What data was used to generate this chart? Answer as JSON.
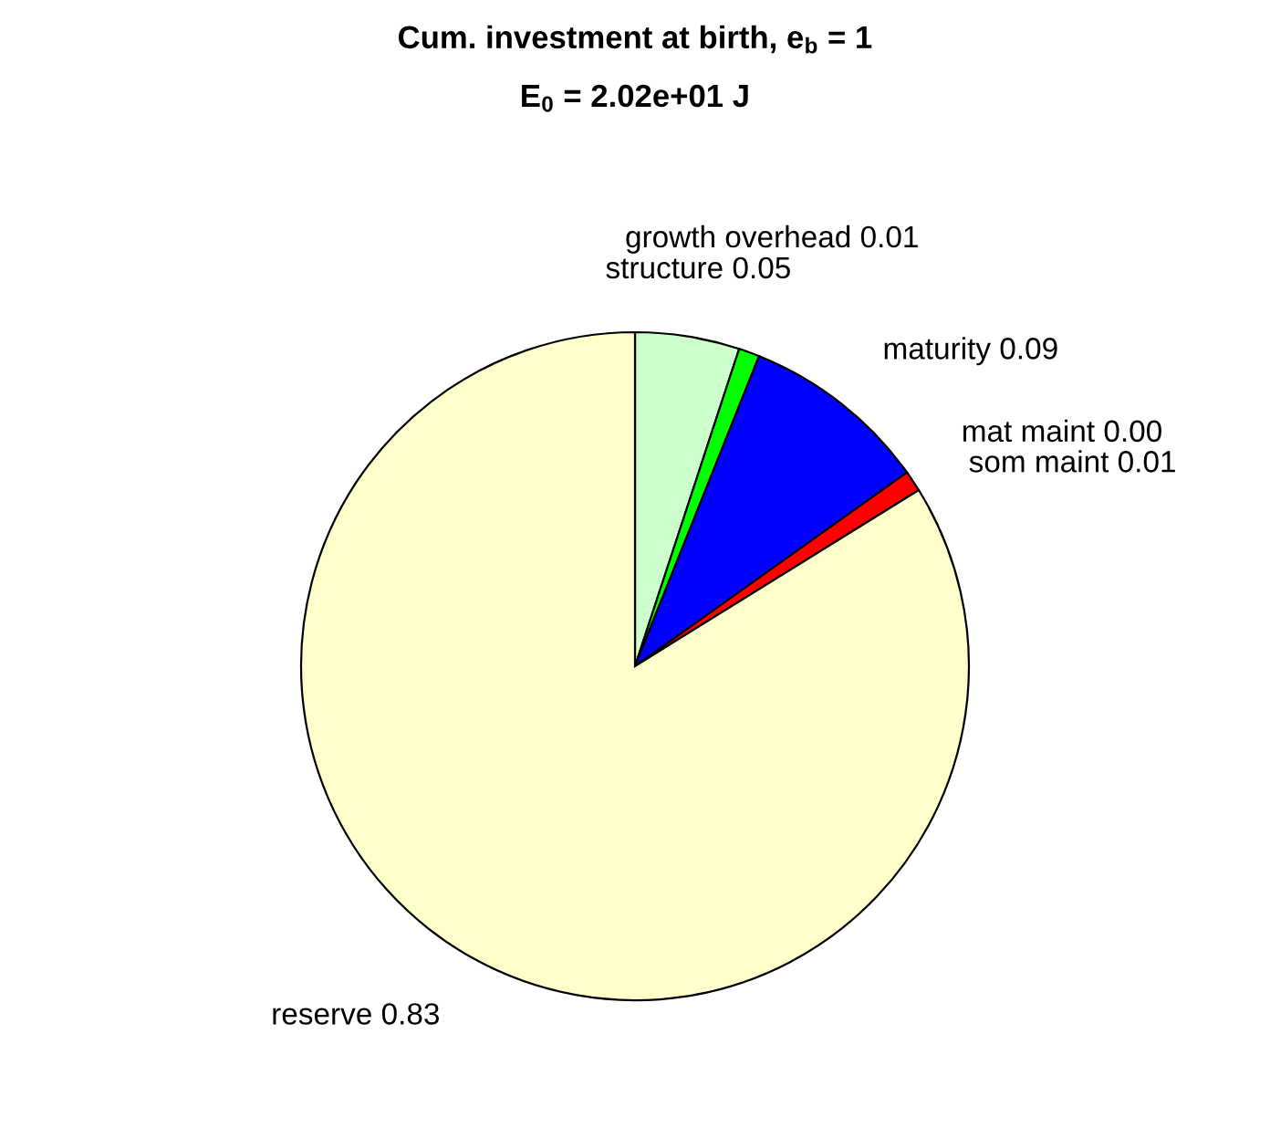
{
  "chart_data": {
    "type": "pie",
    "title": "Cum. investment at birth, e$_{b}$ = 1",
    "subtitle": "E$_{0}$ = 2.02e+01 J",
    "categories": [
      "structure",
      "growth overhead",
      "maturity",
      "mat maint",
      "som maint",
      "reserve"
    ],
    "values": [
      0.05,
      0.01,
      0.09,
      0,
      0.01,
      0.83
    ],
    "value_labels": [
      "0.05",
      "0.01",
      "0.09",
      "0.00",
      "0.01",
      "0.83"
    ],
    "colors": [
      "#ccffcc",
      "#00ff00",
      "#0000ff",
      null,
      "#ff0000",
      "#ffffcc"
    ]
  }
}
